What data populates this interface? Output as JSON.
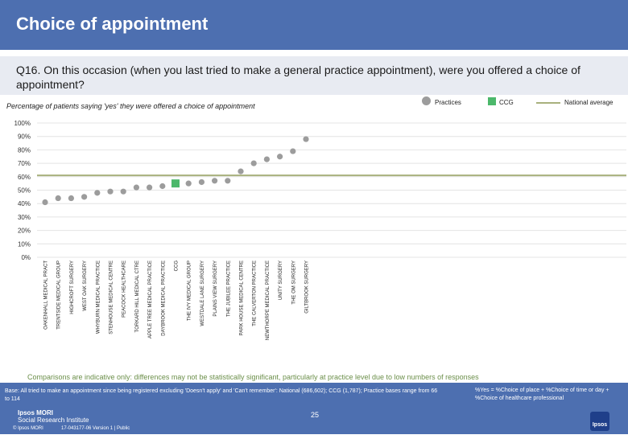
{
  "header": {
    "title": "Choice of appointment"
  },
  "question": {
    "text": "Q16. On this occasion (when you last tried to make a general practice appointment), were you offered a choice of appointment?"
  },
  "subtitle": "Percentage of patients saying 'yes' they were offered a choice of appointment",
  "legend": {
    "practices": "Practices",
    "ccg": "CCG",
    "national": "National average"
  },
  "colors": {
    "practice": "#9c9c9c",
    "ccg": "#4cb86b",
    "national": "#a8b17d",
    "header": "#4d6fb0"
  },
  "chart_data": {
    "type": "scatter",
    "title": "Percentage of patients saying 'yes' they were offered a choice of appointment",
    "xlabel": "",
    "ylabel": "",
    "ylim": [
      0,
      100
    ],
    "yticks": [
      "0%",
      "10%",
      "20%",
      "30%",
      "40%",
      "50%",
      "60%",
      "70%",
      "80%",
      "90%",
      "100%"
    ],
    "national_average": 61,
    "categories": [
      "OAKENHALL MEDICAL PRACT",
      "TRENTSIDE MEDICAL GROUP",
      "HIGHCROFT SURGERY",
      "WEST OAK SURGERY",
      "WHYBURN MEDICAL PRACTICE",
      "STENHOUSE MEDICAL CENTRE",
      "PEACOCK HEALTHCARE",
      "TORKARD HILL MEDICAL CTRE",
      "APPLE TREE MEDICAL PRACTICE",
      "DAYBROOK MEDICAL PRACTICE",
      "CCG",
      "THE IVY MEDICAL GROUP",
      "WESTDALE LANE SURGERY",
      "PLAINS VIEW SURGERY",
      "THE JUBILEE PRACTICE",
      "PARK HOUSE MEDICAL CENTRE",
      "THE CALVERTON PRACTICE",
      "NEWTHORPE MEDICAL PRACTICE",
      "UNITY SURGERY",
      "THE OM SURGERY",
      "GILTBROOK SURGERY"
    ],
    "values": [
      41,
      44,
      44,
      45,
      48,
      49,
      49,
      52,
      52,
      53,
      55,
      55,
      56,
      57,
      57,
      64,
      70,
      73,
      75,
      79,
      88
    ],
    "highlight_index": 10
  },
  "note": "Comparisons are indicative only: differences may not be statistically significant, particularly at practice level due to low numbers of responses",
  "footer": {
    "base": "Base: All tried to make an appointment since being registered excluding 'Doesn't apply' and 'Can't remember': National (686,602); CCG (1,787); Practice bases range from 66 to 114",
    "definition": "%Yes = %Choice of place + %Choice of time or day + %Choice of healthcare professional",
    "logo_line1": "Ipsos MORI",
    "logo_line2": "Social Research Institute",
    "page_number": "25",
    "copyright": "© Ipsos MORI",
    "job": "17-043177-06 Version 1 | Public",
    "ipsos_badge": "Ipsos"
  }
}
